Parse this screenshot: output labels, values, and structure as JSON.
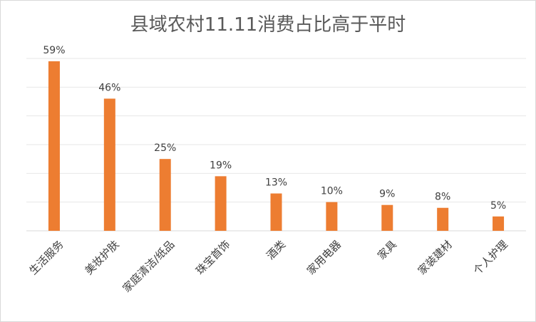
{
  "chart_data": {
    "type": "bar",
    "title": "县域农村11.11消费占比高于平时",
    "categories": [
      "生活服务",
      "美妆护肤",
      "家庭清洁/纸品",
      "珠宝首饰",
      "酒类",
      "家用电器",
      "家具",
      "家装建材",
      "个人护理"
    ],
    "values": [
      59,
      46,
      25,
      19,
      13,
      10,
      9,
      8,
      5
    ],
    "data_labels": [
      "59%",
      "46%",
      "25%",
      "19%",
      "13%",
      "10%",
      "9%",
      "8%",
      "5%"
    ],
    "ylim": [
      0,
      60
    ],
    "ytick_step": 10,
    "grid": true,
    "legend": "none",
    "bar_color": "#ED7D31"
  }
}
